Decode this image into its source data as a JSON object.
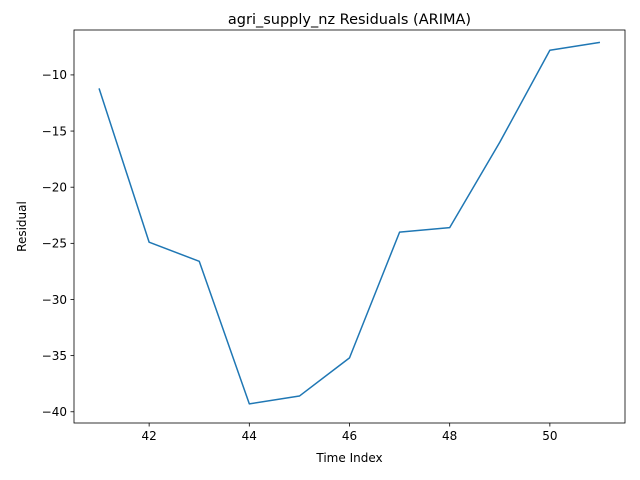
{
  "chart_data": {
    "type": "line",
    "title": "agri_supply_nz Residuals (ARIMA)",
    "xlabel": "Time Index",
    "ylabel": "Residual",
    "x": [
      41,
      42,
      43,
      44,
      45,
      46,
      47,
      48,
      49,
      50,
      51
    ],
    "series": [
      {
        "values": [
          -11.2,
          -24.9,
          -26.6,
          -39.3,
          -38.6,
          -35.2,
          -24.0,
          -23.6,
          -16.0,
          -7.8,
          -7.1
        ]
      }
    ],
    "xlim": [
      40.5,
      51.5
    ],
    "ylim": [
      -41.0,
      -6.0
    ],
    "xticks": [
      42,
      44,
      46,
      48,
      50
    ],
    "yticks": [
      -40,
      -35,
      -30,
      -25,
      -20,
      -15,
      -10
    ],
    "grid": false,
    "line_color": "#1f77b4"
  }
}
